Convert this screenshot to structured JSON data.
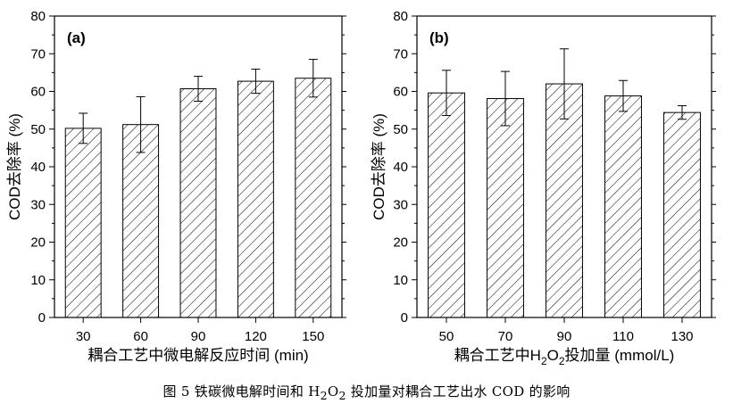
{
  "chart_data": [
    {
      "type": "bar",
      "panel_label": "(a)",
      "categories": [
        "30",
        "60",
        "90",
        "120",
        "150"
      ],
      "values": [
        50.2,
        51.2,
        60.7,
        62.7,
        63.5
      ],
      "errors": [
        4.0,
        7.4,
        3.3,
        3.2,
        5.0
      ],
      "xlabel": "耦合工艺中微电解反应时间 (min)",
      "ylabel": "COD去除率 (%)",
      "ylim": [
        0,
        80
      ],
      "yticks": [
        0,
        10,
        20,
        30,
        40,
        50,
        60,
        70,
        80
      ],
      "fill": "hatched"
    },
    {
      "type": "bar",
      "panel_label": "(b)",
      "categories": [
        "50",
        "70",
        "90",
        "110",
        "130"
      ],
      "values": [
        59.6,
        58.1,
        62.0,
        58.8,
        54.4
      ],
      "errors": [
        6.0,
        7.2,
        9.3,
        4.1,
        1.8
      ],
      "xlabel_parts": [
        "耦合工艺中H",
        "2",
        "O",
        "2",
        "投加量 (mmol/L)"
      ],
      "ylabel": "COD去除率 (%)",
      "ylim": [
        0,
        80
      ],
      "yticks": [
        0,
        10,
        20,
        30,
        40,
        50,
        60,
        70,
        80
      ],
      "fill": "hatched"
    }
  ],
  "caption": {
    "prefix": "图 5  铁碳微电解时间和 H",
    "sub1": "2",
    "mid": "O",
    "sub2": "2",
    "suffix": " 投加量对耦合工艺出水 COD 的影响"
  },
  "colors": {
    "line": "#000000",
    "background": "#ffffff"
  }
}
